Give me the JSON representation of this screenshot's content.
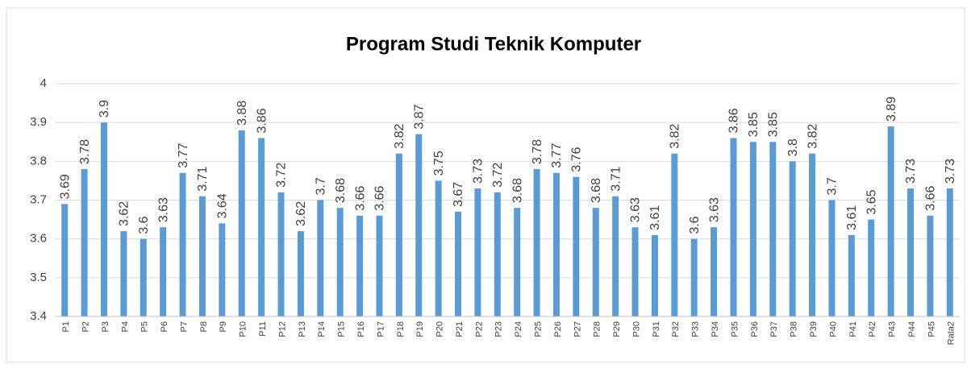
{
  "chart_data": {
    "type": "bar",
    "title": "Program Studi Teknik Komputer",
    "categories": [
      "P1",
      "P2",
      "P3",
      "P4",
      "P5",
      "P6",
      "P7",
      "P8",
      "P9",
      "P10",
      "P11",
      "P12",
      "P13",
      "P14",
      "P15",
      "P16",
      "P17",
      "P18",
      "P19",
      "P20",
      "P21",
      "P22",
      "P23",
      "P24",
      "P25",
      "P26",
      "P27",
      "P28",
      "P29",
      "P30",
      "P31",
      "P32",
      "P33",
      "P34",
      "P35",
      "P36",
      "P37",
      "P38",
      "P39",
      "P40",
      "P41",
      "P42",
      "P43",
      "P44",
      "P45",
      "Rata2"
    ],
    "values": [
      3.69,
      3.78,
      3.9,
      3.62,
      3.6,
      3.63,
      3.77,
      3.71,
      3.64,
      3.88,
      3.86,
      3.72,
      3.62,
      3.7,
      3.68,
      3.66,
      3.66,
      3.82,
      3.87,
      3.75,
      3.67,
      3.73,
      3.72,
      3.68,
      3.78,
      3.77,
      3.76,
      3.68,
      3.71,
      3.63,
      3.61,
      3.82,
      3.6,
      3.63,
      3.86,
      3.85,
      3.85,
      3.8,
      3.82,
      3.7,
      3.61,
      3.65,
      3.89,
      3.73,
      3.66,
      3.73
    ],
    "color": "#5b9bd5",
    "ylim": [
      3.4,
      4
    ],
    "yticks": [
      3.4,
      3.5,
      3.6,
      3.7,
      3.8,
      3.9,
      4
    ],
    "grid": true
  }
}
